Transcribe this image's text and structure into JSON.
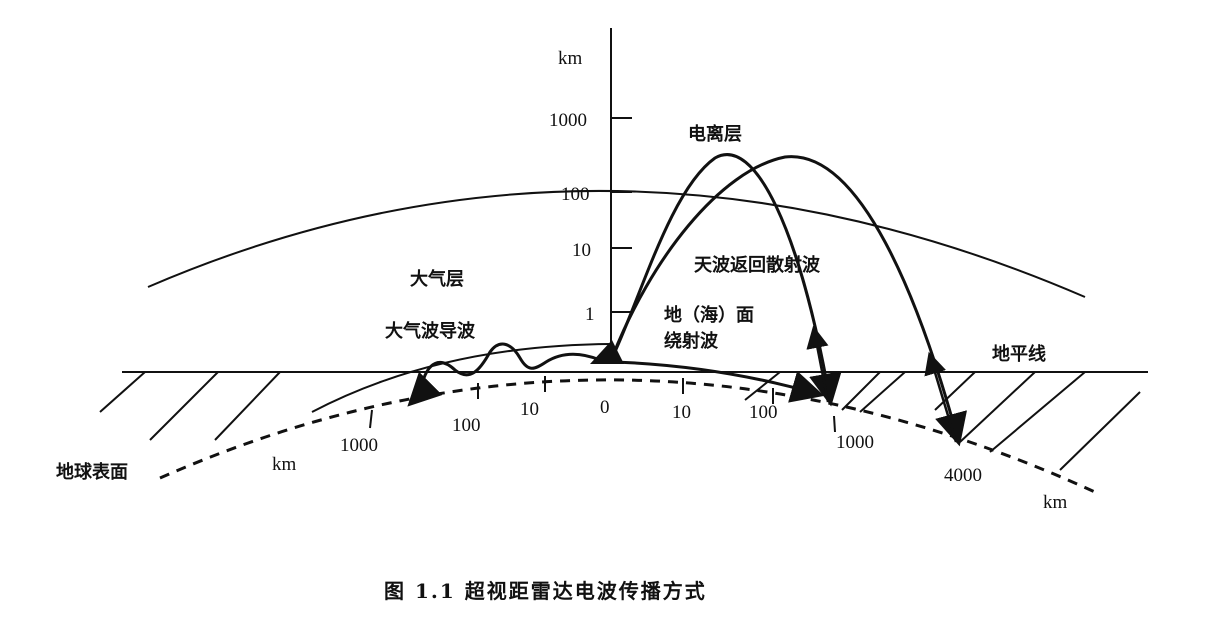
{
  "diagram": {
    "caption": "图 1.1   超视距雷达电波传播方式",
    "vertical_axis": {
      "unit": "km",
      "ticks": [
        "1000",
        "100",
        "10",
        "1"
      ]
    },
    "ground_range_ticks": {
      "left": [
        "1000",
        "100",
        "10"
      ],
      "center": "0",
      "right": [
        "10",
        "100",
        "1000",
        "4000"
      ],
      "unit_left": "km",
      "unit_right": "km"
    },
    "labels": {
      "ionosphere": "电离层",
      "atmosphere": "大气层",
      "skywave": "天波返回散射波",
      "ground_wave_line1": "地（海）面",
      "ground_wave_line2": "绕射波",
      "duct": "大气波导波",
      "horizon": "地平线",
      "earth_surface": "地球表面"
    },
    "colors": {
      "ink": "#111111",
      "background": "#ffffff"
    }
  }
}
